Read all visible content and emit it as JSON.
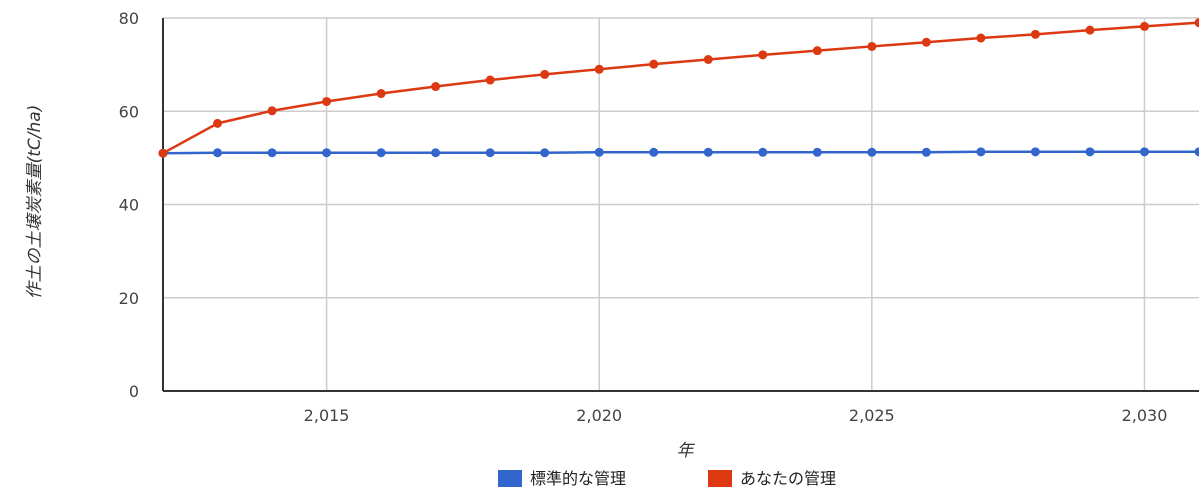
{
  "chart_data": {
    "type": "line",
    "title": "",
    "xlabel": "年",
    "ylabel": "作土の土壌炭素量(tC/ha)",
    "xlim": [
      2012,
      2031
    ],
    "ylim": [
      0,
      80
    ],
    "x_ticks": [
      {
        "value": 2015,
        "label": "2,015"
      },
      {
        "value": 2020,
        "label": "2,020"
      },
      {
        "value": 2025,
        "label": "2,025"
      },
      {
        "value": 2030,
        "label": "2,030"
      }
    ],
    "y_ticks": [
      {
        "value": 0,
        "label": "0"
      },
      {
        "value": 20,
        "label": "20"
      },
      {
        "value": 40,
        "label": "40"
      },
      {
        "value": 60,
        "label": "60"
      },
      {
        "value": 80,
        "label": "80"
      }
    ],
    "grid": true,
    "legend_position": "bottom",
    "x": [
      2012,
      2013,
      2014,
      2015,
      2016,
      2017,
      2018,
      2019,
      2020,
      2021,
      2022,
      2023,
      2024,
      2025,
      2026,
      2027,
      2028,
      2029,
      2030,
      2031
    ],
    "series": [
      {
        "name": "標準的な管理",
        "color": "#3366cc",
        "values": [
          51.0,
          51.1,
          51.1,
          51.1,
          51.1,
          51.1,
          51.1,
          51.1,
          51.2,
          51.2,
          51.2,
          51.2,
          51.2,
          51.2,
          51.2,
          51.3,
          51.3,
          51.3,
          51.3,
          51.3
        ]
      },
      {
        "name": "あなたの管理",
        "color": "#dc3912",
        "values": [
          51.0,
          57.4,
          60.1,
          62.1,
          63.8,
          65.3,
          66.7,
          67.9,
          69.0,
          70.1,
          71.1,
          72.1,
          73.0,
          73.9,
          74.8,
          75.7,
          76.5,
          77.4,
          78.2,
          79.0
        ]
      }
    ]
  }
}
